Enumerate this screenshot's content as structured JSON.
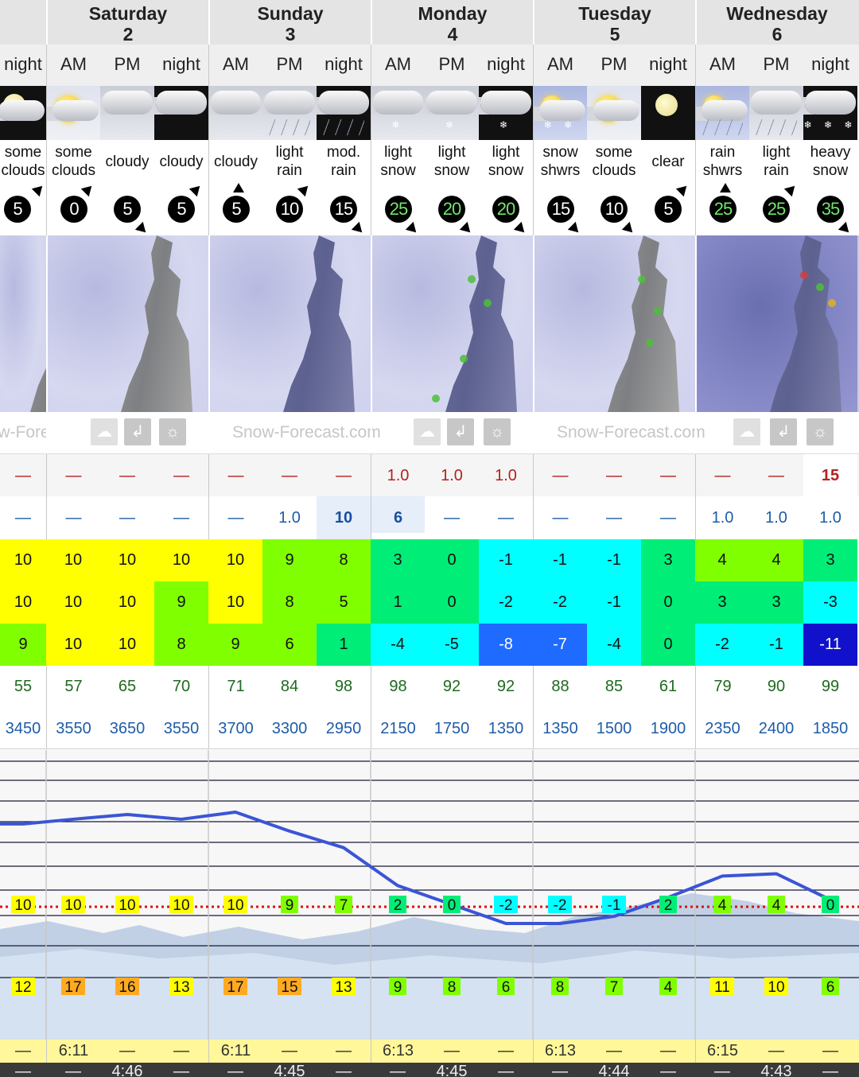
{
  "days": [
    {
      "name": "",
      "date": ""
    },
    {
      "name": "Saturday",
      "date": "2"
    },
    {
      "name": "Sunday",
      "date": "3"
    },
    {
      "name": "Monday",
      "date": "4"
    },
    {
      "name": "Tuesday",
      "date": "5"
    },
    {
      "name": "Wednesday",
      "date": "6"
    }
  ],
  "periods": [
    "night",
    "AM",
    "PM",
    "night",
    "AM",
    "PM",
    "night",
    "AM",
    "PM",
    "night",
    "AM",
    "PM",
    "night",
    "AM",
    "PM",
    "night"
  ],
  "weather_icons": [
    "some-clouds-night-icon",
    "some-clouds-day-icon",
    "cloudy-icon",
    "cloudy-night-icon",
    "cloudy-icon",
    "light-rain-icon",
    "mod-rain-night-icon",
    "light-snow-icon",
    "light-snow-icon",
    "light-snow-night-icon",
    "snow-showers-icon",
    "some-clouds-day-icon",
    "clear-night-icon",
    "rain-showers-icon",
    "light-rain-icon",
    "heavy-snow-night-icon"
  ],
  "descriptions": [
    [
      "some",
      "clouds"
    ],
    [
      "some",
      "clouds"
    ],
    [
      "cloudy",
      ""
    ],
    [
      "cloudy",
      ""
    ],
    [
      "cloudy",
      ""
    ],
    [
      "light",
      "rain"
    ],
    [
      "mod.",
      "rain"
    ],
    [
      "light",
      "snow"
    ],
    [
      "light",
      "snow"
    ],
    [
      "light",
      "snow"
    ],
    [
      "snow",
      "shwrs"
    ],
    [
      "some",
      "clouds"
    ],
    [
      "clear",
      ""
    ],
    [
      "rain",
      "shwrs"
    ],
    [
      "light",
      "rain"
    ],
    [
      "heavy",
      "snow"
    ]
  ],
  "wind": [
    "5",
    "0",
    "5",
    "5",
    "5",
    "10",
    "15",
    "25",
    "20",
    "20",
    "15",
    "10",
    "5",
    "25",
    "25",
    "35"
  ],
  "wind_dirs": [
    "ne",
    "ne",
    "se",
    "ne",
    "n",
    "ne",
    "se",
    "se",
    "se",
    "se",
    "se",
    "se",
    "ne",
    "n",
    "ne",
    "se"
  ],
  "brand": "Snow-Forecast.com",
  "snow": [
    "—",
    "—",
    "—",
    "—",
    "—",
    "—",
    "—",
    "1.0",
    "1.0",
    "1.0",
    "—",
    "—",
    "—",
    "—",
    "—",
    "15"
  ],
  "rain": [
    "—",
    "—",
    "—",
    "—",
    "—",
    "1.0",
    "10",
    "6",
    "—",
    "—",
    "—",
    "—",
    "—",
    "1.0",
    "1.0",
    "1.0"
  ],
  "temp_max": [
    "10",
    "10",
    "10",
    "10",
    "10",
    "9",
    "8",
    "3",
    "0",
    "-1",
    "-1",
    "-1",
    "3",
    "4",
    "4",
    "3"
  ],
  "temp_min": [
    "10",
    "10",
    "10",
    "9",
    "10",
    "8",
    "5",
    "1",
    "0",
    "-2",
    "-2",
    "-1",
    "0",
    "3",
    "3",
    "-3"
  ],
  "temp_chill": [
    "9",
    "10",
    "10",
    "8",
    "9",
    "6",
    "1",
    "-4",
    "-5",
    "-8",
    "-7",
    "-4",
    "0",
    "-2",
    "-1",
    "-11"
  ],
  "humidity": [
    "55",
    "57",
    "65",
    "70",
    "71",
    "84",
    "98",
    "98",
    "92",
    "92",
    "88",
    "85",
    "61",
    "79",
    "90",
    "99"
  ],
  "freezing_level": [
    "3450",
    "3550",
    "3650",
    "3550",
    "3700",
    "3300",
    "2950",
    "2150",
    "1750",
    "1350",
    "1350",
    "1500",
    "1900",
    "2350",
    "2400",
    "1850"
  ],
  "chart_data": {
    "type": "line",
    "series": [
      {
        "values": [
          3450,
          3550,
          3650,
          3550,
          3700,
          3300,
          2950,
          2150,
          1750,
          1350,
          1350,
          1500,
          1900,
          2350,
          2400,
          1850
        ]
      }
    ],
    "labels_upper": [
      "10",
      "10",
      "10",
      "10",
      "10",
      "9",
      "7",
      "2",
      "0",
      "-2",
      "-2",
      "-1",
      "2",
      "4",
      "4",
      "0"
    ],
    "labels_lower": [
      "12",
      "17",
      "16",
      "13",
      "17",
      "15",
      "13",
      "9",
      "8",
      "6",
      "8",
      "7",
      "4",
      "11",
      "10",
      "6"
    ]
  },
  "sunrise": [
    "—",
    "6:11",
    "—",
    "—",
    "6:11",
    "—",
    "—",
    "6:13",
    "—",
    "—",
    "6:13",
    "—",
    "—",
    "6:15",
    "—",
    "—"
  ],
  "sunset": [
    "—",
    "—",
    "4:46",
    "—",
    "—",
    "4:45",
    "—",
    "—",
    "4:45",
    "—",
    "—",
    "4:44",
    "—",
    "—",
    "4:43",
    "—"
  ],
  "colors": {
    "yellow": "#ffff00",
    "lime": "#80ff00",
    "green": "#00ee77",
    "cyan": "#00ffff",
    "blue": "#1f6bff",
    "navy": "#1111cc",
    "orange": "#ffaa22"
  }
}
